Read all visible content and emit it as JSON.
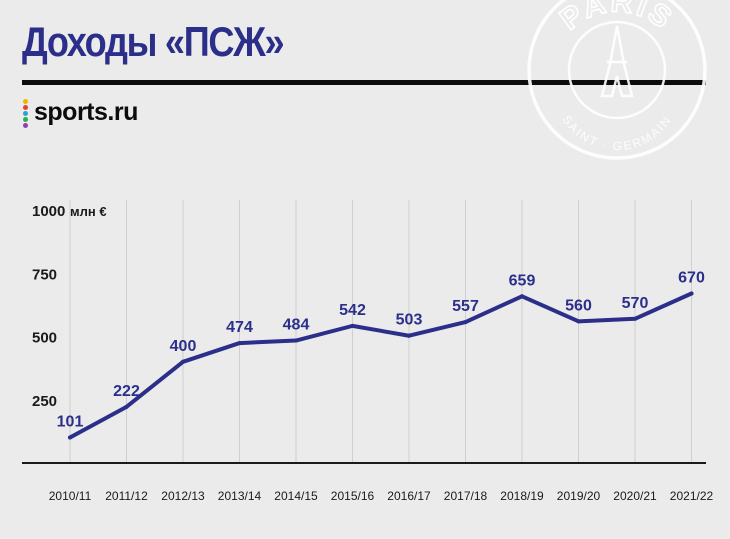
{
  "header": {
    "title": "Доходы «ПСЖ»",
    "brand": "sports.ru",
    "brand_dot_colors": [
      "#f0b400",
      "#e8412c",
      "#29a3d6",
      "#2bb04a",
      "#8d3fb5"
    ]
  },
  "emblem": {
    "text_top": "PARIS",
    "text_bottom": "SAINT · GERMAIN",
    "icon": "psg-crest-watermark"
  },
  "chart_data": {
    "type": "line",
    "categories": [
      "2010/11",
      "2011/12",
      "2012/13",
      "2013/14",
      "2014/15",
      "2015/16",
      "2016/17",
      "2017/18",
      "2018/19",
      "2019/20",
      "2020/21",
      "2021/22"
    ],
    "values": [
      101,
      222,
      400,
      474,
      484,
      542,
      503,
      557,
      659,
      560,
      570,
      670
    ],
    "y_ticks": [
      250,
      500,
      750,
      1000
    ],
    "y_tick_labels": [
      "250",
      "500",
      "750",
      "1000"
    ],
    "y_unit": "млн €",
    "ylim": [
      0,
      1000
    ],
    "grid": "vertical",
    "line_color": "#2b2f8a",
    "label_color": "#2b2f8a",
    "grid_color": "#cfcfcf",
    "axis_color": "#1a1a1a"
  }
}
